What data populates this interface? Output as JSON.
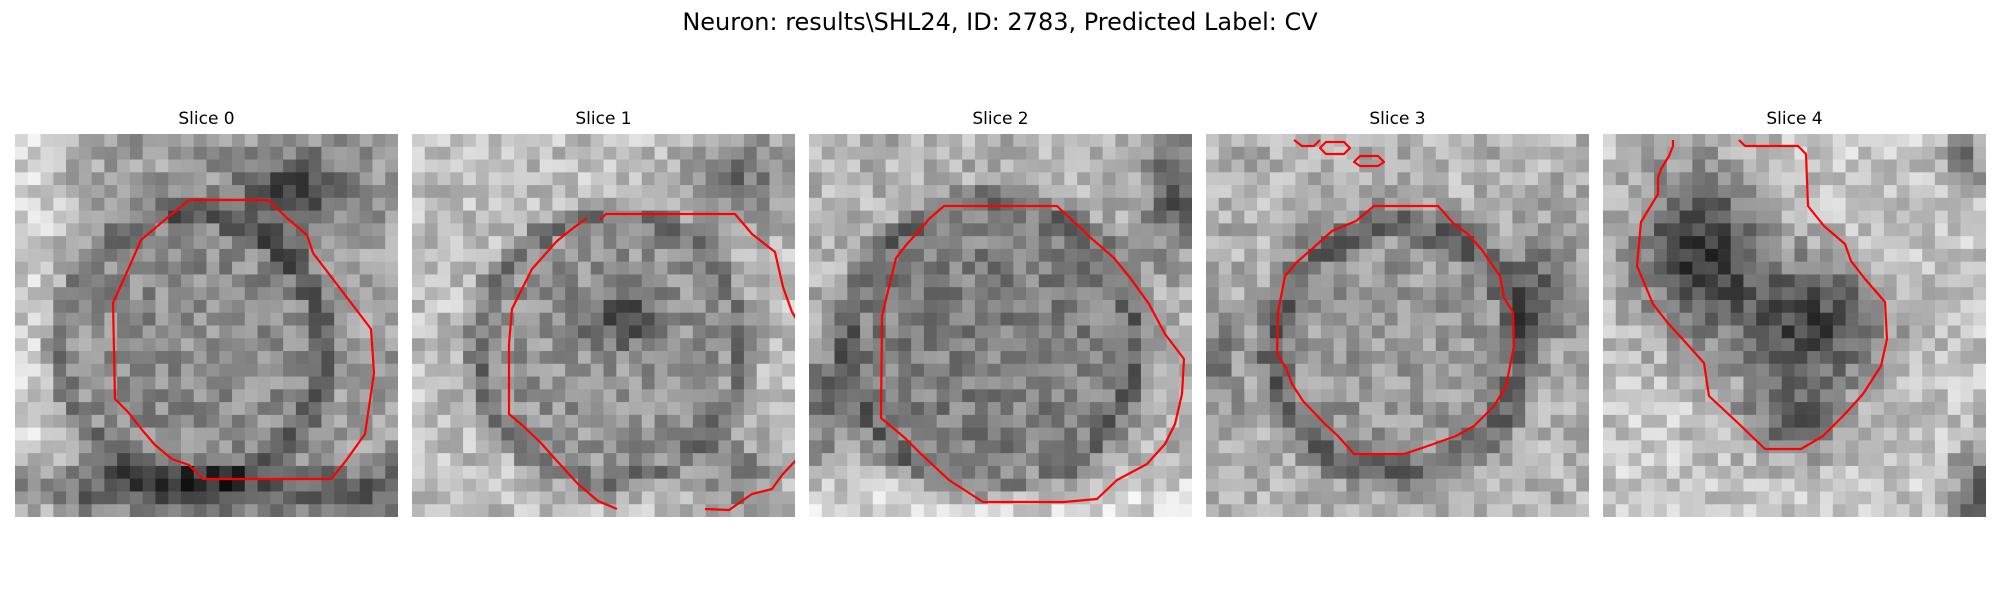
{
  "figure": {
    "title": "Neuron: results\\SHL24, ID: 2783, Predicted Label: CV"
  },
  "panels": [
    {
      "title": "Slice 0"
    },
    {
      "title": "Slice 1"
    },
    {
      "title": "Slice 2"
    },
    {
      "title": "Slice 3"
    },
    {
      "title": "Slice 4"
    }
  ],
  "colors": {
    "contour": "#ff0000",
    "background": "#ffffff"
  }
}
